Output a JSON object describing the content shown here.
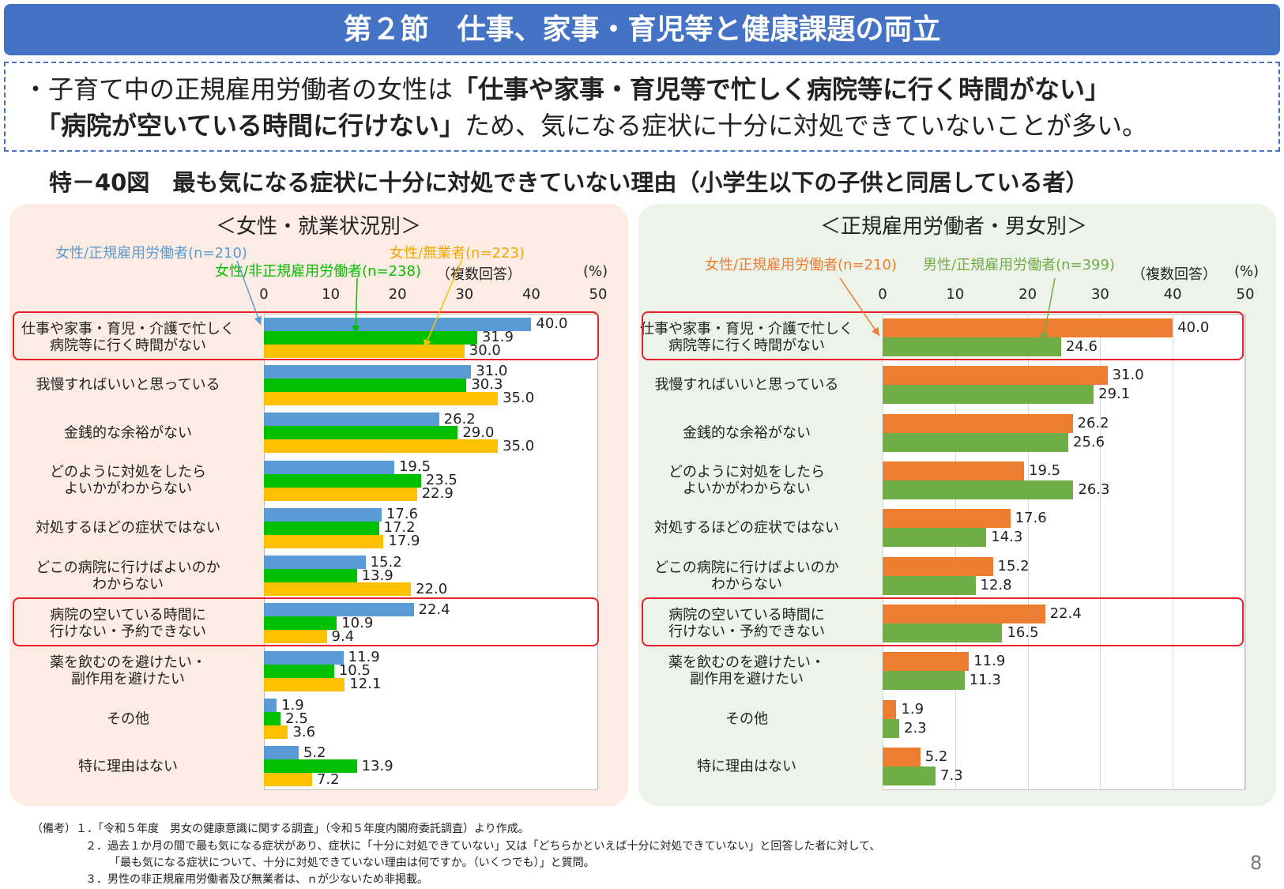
{
  "header": {
    "title": "第２節　仕事、家事・育児等と健康課題の両立"
  },
  "summary": {
    "line1": [
      "・子育て中の正規雇用労働者の女性は",
      "「仕事や家事・育児等で忙しく病院等に行く時間がない」"
    ],
    "line2": [
      "「病院が空いている時間に行けない」",
      "ため、気になる症状に十分に対処できていないことが多い。"
    ]
  },
  "figure_title": "特－40図　最も気になる症状に十分に対処できていない理由（小学生以下の子供と同居している者）",
  "chart_data": [
    {
      "type": "hbar",
      "subtitle": "＜女性・就業状況別＞",
      "note": "（複数回答）",
      "unit": "(%)",
      "categories": [
        "仕事や家事・育児・介護で忙しく\n病院等に行く時間がない",
        "我慢すればいいと思っている",
        "金銭的な余裕がない",
        "どのように対処をしたら\nよいかがわからない",
        "対処するほどの症状ではない",
        "どこの病院に行けばよいのか\nわからない",
        "病院の空いている時間に\n行けない・予約できない",
        "薬を飲むのを避けたい・\n副作用を避けたい",
        "その他",
        "特に理由はない"
      ],
      "series": [
        {
          "name": "女性/正規雇用労働者(n=210)",
          "color": "#5b9bd5",
          "values": [
            40.0,
            31.0,
            26.2,
            19.5,
            17.6,
            15.2,
            22.4,
            11.9,
            1.9,
            5.2
          ],
          "value_labels": [
            "40.0",
            "31.0",
            "26.2",
            "19.5",
            "17.6",
            "15.2",
            "22.4",
            "11.9",
            "1.9",
            "5.2"
          ]
        },
        {
          "name": "女性/非正規雇用労働者(n=238)",
          "color": "#00c000",
          "values": [
            31.9,
            30.3,
            29.0,
            23.5,
            17.2,
            13.9,
            10.9,
            10.5,
            2.5,
            13.9
          ],
          "value_labels": [
            "31.9",
            "30.3",
            "29.0",
            "23.5",
            "17.2",
            "13.9",
            "10.9",
            "10.5",
            "2.5",
            "13.9"
          ]
        },
        {
          "name": "女性/無業者(n=223)",
          "color": "#ffc000",
          "values": [
            30.0,
            35.0,
            35.0,
            22.9,
            17.9,
            22.0,
            9.4,
            12.1,
            3.6,
            7.2
          ],
          "value_labels": [
            "30.0",
            "35.0",
            "35.0",
            "22.9",
            "17.9",
            "22.0",
            "9.4",
            "12.1",
            "3.6",
            "7.2"
          ]
        }
      ],
      "xlim": [
        0,
        50
      ],
      "xticks": [
        0,
        10,
        20,
        30,
        40,
        50
      ],
      "grid": false,
      "highlight_categories": [
        0,
        6
      ]
    },
    {
      "type": "hbar",
      "subtitle": "＜正規雇用労働者・男女別＞",
      "note": "（複数回答）",
      "unit": "(%)",
      "categories": [
        "仕事や家事・育児・介護で忙しく\n病院等に行く時間がない",
        "我慢すればいいと思っている",
        "金銭的な余裕がない",
        "どのように対処をしたら\nよいかがわからない",
        "対処するほどの症状ではない",
        "どこの病院に行けばよいのか\nわからない",
        "病院の空いている時間に\n行けない・予約できない",
        "薬を飲むのを避けたい・\n副作用を避けたい",
        "その他",
        "特に理由はない"
      ],
      "series": [
        {
          "name": "女性/正規雇用労働者(n=210)",
          "color": "#ed7d31",
          "values": [
            40.0,
            31.0,
            26.2,
            19.5,
            17.6,
            15.2,
            22.4,
            11.9,
            1.9,
            5.2
          ],
          "value_labels": [
            "40.0",
            "31.0",
            "26.2",
            "19.5",
            "17.6",
            "15.2",
            "22.4",
            "11.9",
            "1.9",
            "5.2"
          ]
        },
        {
          "name": "男性/正規雇用労働者(n=399)",
          "color": "#70ad47",
          "values": [
            24.6,
            29.1,
            25.6,
            26.3,
            14.3,
            12.8,
            16.5,
            11.3,
            2.3,
            7.3
          ],
          "value_labels": [
            "24.6",
            "29.1",
            "25.6",
            "26.3",
            "14.3",
            "12.8",
            "16.5",
            "11.3",
            "2.3",
            "7.3"
          ]
        }
      ],
      "xlim": [
        0,
        50
      ],
      "xticks": [
        0,
        10,
        20,
        30,
        40,
        50
      ],
      "grid": true,
      "highlight_categories": [
        0,
        6
      ]
    }
  ],
  "notes": [
    "（備考）１．「令和５年度　男女の健康意識に関する調査」（令和５年度内閣府委託調査）より作成。",
    "２．過去１か月の間で最も気になる症状があり、症状に「十分に対処できていない」又は「どちらかといえば十分に対処できていない」と回答した者に対して、",
    "「最も気になる症状について、十分に対処できていない理由は何ですか。（いくつでも）」と質問。",
    "３．男性の非正規雇用労働者及び無業者は、ｎが少ないため非掲載。"
  ],
  "page_number": "8"
}
